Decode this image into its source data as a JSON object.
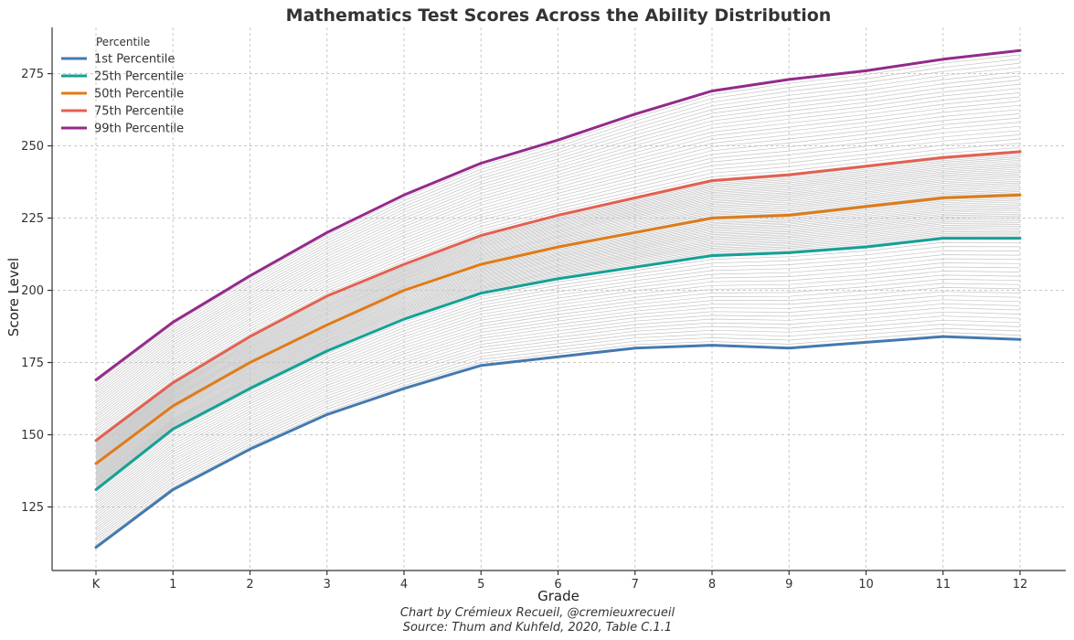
{
  "chart_data": {
    "type": "line",
    "title": "Mathematics Test Scores Across the Ability Distribution",
    "xlabel": "Grade",
    "ylabel": "Score Level",
    "categories": [
      "K",
      "1",
      "2",
      "3",
      "4",
      "5",
      "6",
      "7",
      "8",
      "9",
      "10",
      "11",
      "12"
    ],
    "ylim": [
      103,
      291
    ],
    "yticks": [
      125,
      150,
      175,
      200,
      225,
      250,
      275
    ],
    "grid": true,
    "legend": {
      "title": "Percentile",
      "position": "top-left"
    },
    "series": [
      {
        "name": "1st Percentile",
        "color": "#4479b0",
        "values": [
          111,
          131,
          145,
          157,
          166,
          174,
          177,
          180,
          181,
          180,
          182,
          184,
          183
        ]
      },
      {
        "name": "25th Percentile",
        "color": "#13a196",
        "values": [
          131,
          152,
          166,
          179,
          190,
          199,
          204,
          208,
          212,
          213,
          215,
          218,
          218
        ]
      },
      {
        "name": "50th Percentile",
        "color": "#e07b17",
        "values": [
          140,
          160,
          175,
          188,
          200,
          209,
          215,
          220,
          225,
          226,
          229,
          232,
          233
        ]
      },
      {
        "name": "75th Percentile",
        "color": "#e36050",
        "values": [
          148,
          168,
          184,
          198,
          209,
          219,
          226,
          232,
          238,
          240,
          243,
          246,
          248
        ]
      },
      {
        "name": "99th Percentile",
        "color": "#932a8a",
        "values": [
          169,
          189,
          205,
          220,
          233,
          244,
          252,
          261,
          269,
          273,
          276,
          280,
          283
        ]
      }
    ],
    "fill_lines": {
      "count": 99,
      "color": "#c4c4c4"
    }
  },
  "credit": {
    "line1": "Chart by Crémieux Recueil, @cremieuxrecueil",
    "line2": "Source: Thum and Kuhfeld, 2020, Table C.1.1"
  }
}
